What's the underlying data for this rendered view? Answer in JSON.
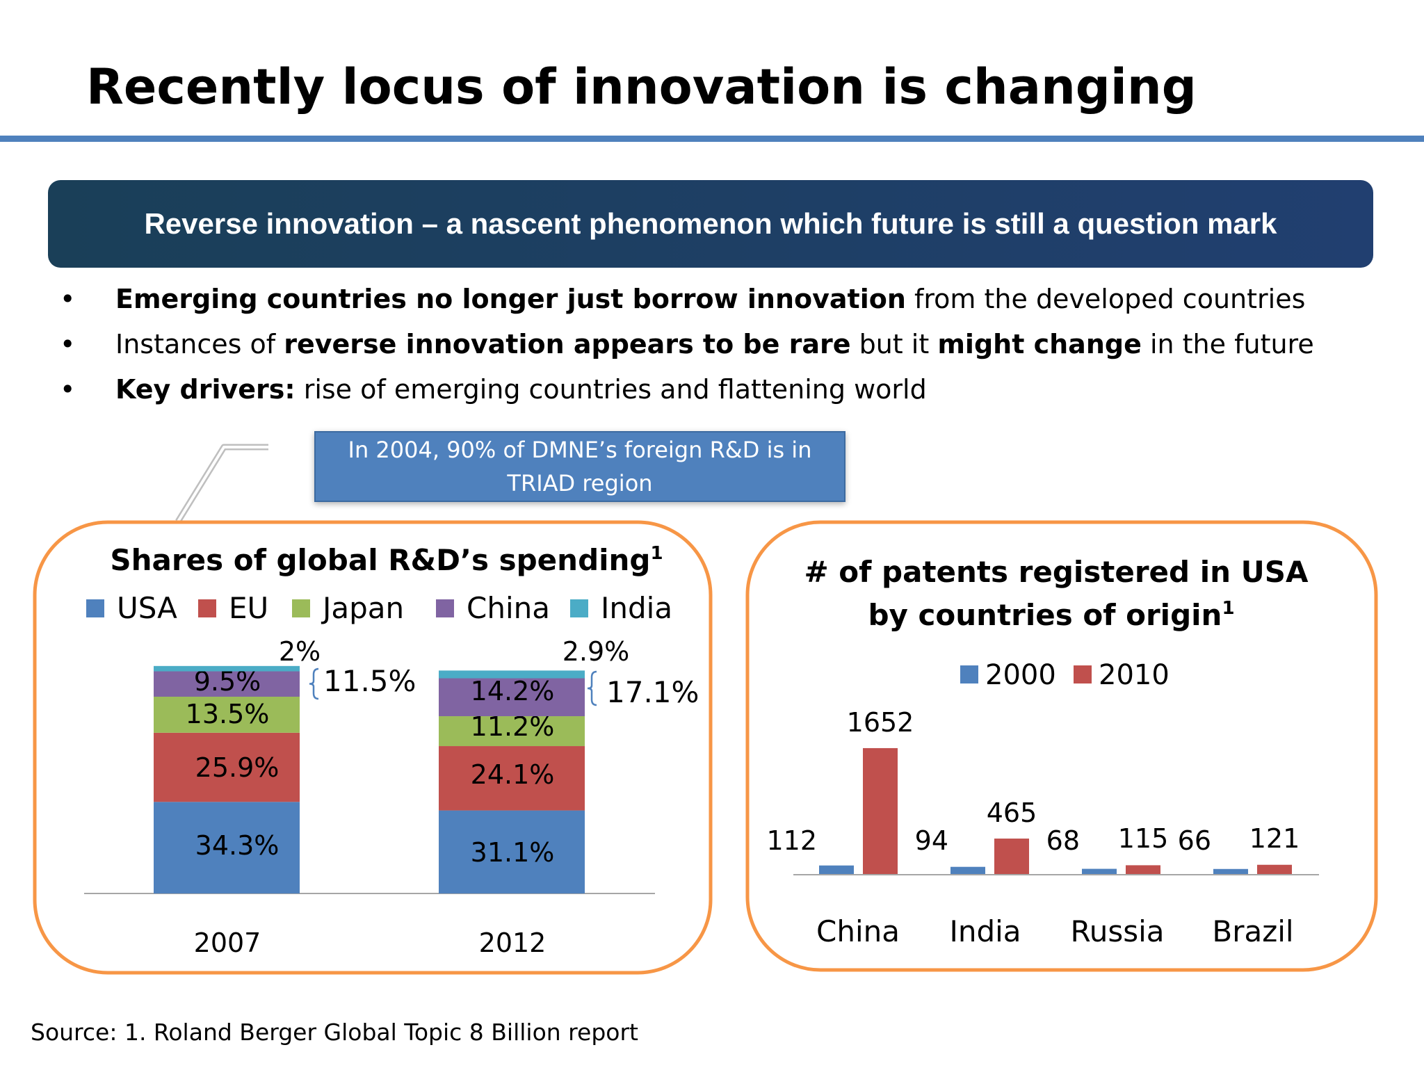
{
  "title": "Recently locus of innovation is changing",
  "banner": "Reverse innovation – a nascent phenomenon which future is still a question mark",
  "bullets": [
    {
      "marker": "•",
      "parts": [
        {
          "text": "Emerging countries no longer just borrow innovation",
          "bold": true
        },
        {
          "text": " from the developed countries",
          "bold": false
        }
      ]
    },
    {
      "marker": "•",
      "parts": [
        {
          "text": "Instances of ",
          "bold": false
        },
        {
          "text": "reverse innovation appears to be rare",
          "bold": true
        },
        {
          "text": " but it ",
          "bold": false
        },
        {
          "text": "might change",
          "bold": true
        },
        {
          "text": " in the future",
          "bold": false
        }
      ]
    },
    {
      "marker": "•",
      "parts": [
        {
          "text": "Key drivers:",
          "bold": true
        },
        {
          "text": " rise of emerging countries and flattening world",
          "bold": false
        }
      ]
    }
  ],
  "callout": {
    "line1": "In 2004, 90% of DMNE’s foreign R&D is in",
    "line2": "TRIAD region"
  },
  "colors": {
    "accent": "#4f81bd",
    "panel_border": "#f79646",
    "usa": "#4f81bd",
    "eu": "#c0504d",
    "japan": "#9bbb59",
    "china": "#8064a2",
    "india": "#4bacc6"
  },
  "source": "Source: 1. Roland Berger Global Topic 8 Billion report",
  "chart_data": [
    {
      "type": "bar",
      "stacked": true,
      "title": "Shares of global R&D’s spending",
      "title_sup": "1",
      "categories": [
        "2007",
        "2012"
      ],
      "series": [
        {
          "name": "USA",
          "color": "#4f81bd",
          "values": [
            34.3,
            31.1
          ],
          "labels": [
            "34.3%",
            "31.1%"
          ]
        },
        {
          "name": "EU",
          "color": "#c0504d",
          "values": [
            25.9,
            24.1
          ],
          "labels": [
            "25.9%",
            "24.1%"
          ]
        },
        {
          "name": "Japan",
          "color": "#9bbb59",
          "values": [
            13.5,
            11.2
          ],
          "labels": [
            "13.5%",
            "11.2%"
          ]
        },
        {
          "name": "China",
          "color": "#8064a2",
          "values": [
            9.5,
            14.2
          ],
          "labels": [
            "9.5%",
            "14.2%"
          ]
        },
        {
          "name": "India",
          "color": "#4bacc6",
          "values": [
            2.0,
            2.9
          ],
          "labels": [
            "2%",
            "2.9%"
          ]
        }
      ],
      "annotations": [
        "11.5%",
        "17.1%"
      ],
      "ylim": [
        0,
        100
      ],
      "legend": "top",
      "grid": false
    },
    {
      "type": "bar",
      "title_lines": [
        "# of patents registered in USA",
        "by countries of origin"
      ],
      "title_sup": "1",
      "categories": [
        "China",
        "India",
        "Russia",
        "Brazil"
      ],
      "series": [
        {
          "name": "2000",
          "color": "#4f81bd",
          "values": [
            112,
            94,
            68,
            66
          ]
        },
        {
          "name": "2010",
          "color": "#c0504d",
          "values": [
            1652,
            465,
            115,
            121
          ]
        }
      ],
      "ylim": [
        0,
        1700
      ],
      "legend": "top",
      "grid": false
    }
  ]
}
